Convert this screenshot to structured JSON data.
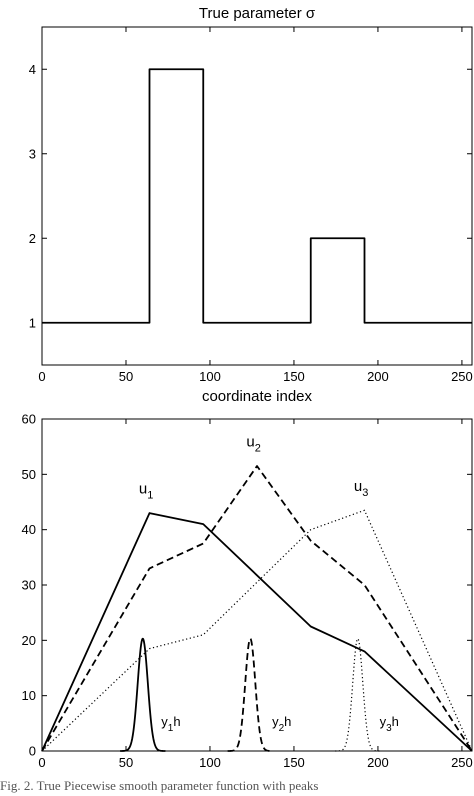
{
  "chart_data": [
    {
      "type": "line",
      "title": "True parameter σ",
      "xlabel": "coordinate index",
      "ylabel": "",
      "xlim": [
        0,
        256
      ],
      "ylim": [
        0.5,
        4.5
      ],
      "x_ticks": [
        "0",
        "50",
        "100",
        "150",
        "200",
        "250"
      ],
      "y_ticks": [
        "1",
        "2",
        "3",
        "4"
      ],
      "grid": false,
      "series": [
        {
          "style": "solid",
          "x": [
            0,
            64,
            64,
            96,
            96,
            160,
            160,
            192,
            192,
            256
          ],
          "y": [
            1,
            1,
            4,
            4,
            1,
            1,
            2,
            2,
            1,
            1
          ]
        }
      ]
    },
    {
      "type": "line",
      "title": "",
      "xlabel": "",
      "ylabel": "",
      "xlim": [
        0,
        256
      ],
      "ylim": [
        0,
        60
      ],
      "x_ticks": [
        "0",
        "50",
        "100",
        "150",
        "200",
        "250"
      ],
      "y_ticks": [
        "0",
        "10",
        "20",
        "30",
        "40",
        "50",
        "60"
      ],
      "grid": false,
      "series": [
        {
          "style": "solid",
          "x": [
            0,
            64,
            96,
            160,
            192,
            256
          ],
          "y": [
            0,
            43,
            41,
            22.5,
            18,
            0
          ]
        },
        {
          "style": "dashed",
          "x": [
            0,
            64,
            96,
            128,
            160,
            192,
            256
          ],
          "y": [
            0,
            33,
            37.5,
            51.5,
            38,
            30,
            0
          ]
        },
        {
          "style": "dotted",
          "x": [
            0,
            64,
            96,
            160,
            192,
            256
          ],
          "y": [
            0,
            18.5,
            21,
            40,
            43.5,
            0
          ]
        },
        {
          "style": "solid",
          "peak": {
            "center": 60,
            "height": 20.3,
            "width": 3
          }
        },
        {
          "style": "dashed",
          "peak": {
            "center": 124,
            "height": 20.3,
            "width": 3
          }
        },
        {
          "style": "dotted",
          "peak": {
            "center": 188,
            "height": 20.3,
            "width": 3
          }
        }
      ],
      "annotations": [
        {
          "main": "u",
          "sub": "1",
          "after": "",
          "x": 62,
          "y": 46.5,
          "kind": "curve"
        },
        {
          "main": "u",
          "sub": "2",
          "after": "",
          "x": 126,
          "y": 55,
          "kind": "curve"
        },
        {
          "main": "u",
          "sub": "3",
          "after": "",
          "x": 190,
          "y": 47,
          "kind": "curve"
        },
        {
          "main": "y",
          "sub": "1",
          "after": "h",
          "x": 71,
          "y": 4.5,
          "kind": "peak"
        },
        {
          "main": "y",
          "sub": "2",
          "after": "h",
          "x": 137,
          "y": 4.5,
          "kind": "peak"
        },
        {
          "main": "y",
          "sub": "3",
          "after": "h",
          "x": 201,
          "y": 4.5,
          "kind": "peak"
        }
      ]
    }
  ],
  "caption": "Fig. 2.  True Piecewise smooth parameter function with peaks"
}
